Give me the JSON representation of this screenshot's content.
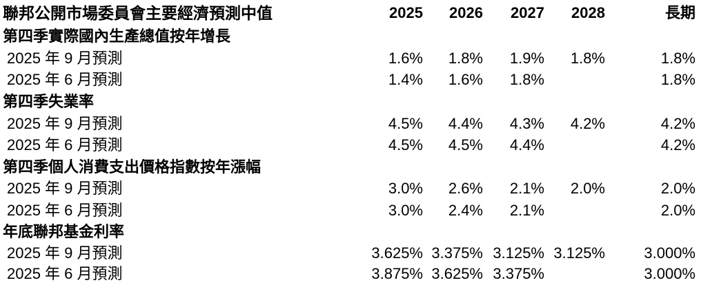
{
  "table": {
    "title": "聯邦公開市場委員會主要經濟預測中值",
    "columns": [
      "2025",
      "2026",
      "2027",
      "2028",
      "長期"
    ],
    "sections": [
      {
        "label": "第四季實際國內生產總值按年增長",
        "rows": [
          {
            "label": "2025 年 9 月預測",
            "values": [
              "1.6%",
              "1.8%",
              "1.9%",
              "1.8%",
              "1.8%"
            ]
          },
          {
            "label": "2025 年 6 月預測",
            "values": [
              "1.4%",
              "1.6%",
              "1.8%",
              "",
              "1.8%"
            ]
          }
        ]
      },
      {
        "label": "第四季失業率",
        "rows": [
          {
            "label": "2025 年 9 月預測",
            "values": [
              "4.5%",
              "4.4%",
              "4.3%",
              "4.2%",
              "4.2%"
            ]
          },
          {
            "label": "2025 年 6 月預測",
            "values": [
              "4.5%",
              "4.5%",
              "4.4%",
              "",
              "4.2%"
            ]
          }
        ]
      },
      {
        "label": "第四季個人消費支出價格指數按年漲幅",
        "rows": [
          {
            "label": "2025 年 9 月預測",
            "values": [
              "3.0%",
              "2.6%",
              "2.1%",
              "2.0%",
              "2.0%"
            ]
          },
          {
            "label": "2025 年 6 月預測",
            "values": [
              "3.0%",
              "2.4%",
              "2.1%",
              "",
              "2.0%"
            ]
          }
        ]
      },
      {
        "label": "年底聯邦基金利率",
        "rows": [
          {
            "label": "2025 年 9 月預測",
            "values": [
              "3.625%",
              "3.375%",
              "3.125%",
              "3.125%",
              "3.000%"
            ]
          },
          {
            "label": "2025 年 6 月預測",
            "values": [
              "3.875%",
              "3.625%",
              "3.375%",
              "",
              "3.000%"
            ]
          }
        ]
      }
    ]
  }
}
